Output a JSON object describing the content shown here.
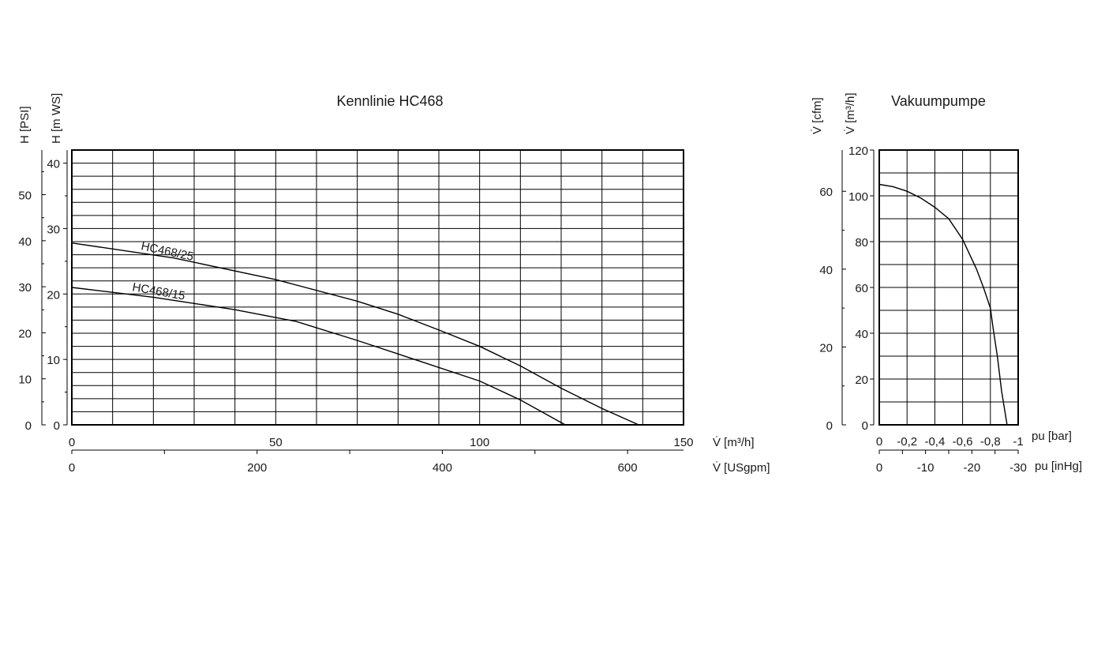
{
  "chart_data": [
    {
      "type": "line",
      "title": "Kennlinie HC468",
      "x_axes": [
        {
          "label": "V̇ [m³/h]",
          "range": [
            0,
            150
          ],
          "ticks": [
            0,
            50,
            100,
            150
          ]
        },
        {
          "label": "V̇ [USgpm]",
          "range": [
            0,
            660.4
          ],
          "ticks": [
            0,
            200,
            400,
            600
          ]
        }
      ],
      "y_axes": [
        {
          "label": "H [m WS]",
          "range": [
            0,
            42
          ],
          "ticks": [
            0,
            10,
            20,
            30,
            40
          ]
        },
        {
          "label": "H [PSI]",
          "range": [
            0,
            59.7
          ],
          "ticks": [
            0,
            10,
            20,
            30,
            40,
            50
          ]
        }
      ],
      "grid": true,
      "series": [
        {
          "name": "HC468/25",
          "x": [
            0,
            25,
            50,
            70,
            80,
            90,
            100,
            110,
            120,
            130,
            139
          ],
          "y": [
            27.8,
            25.5,
            22.2,
            18.9,
            16.9,
            14.5,
            12.0,
            9.0,
            5.6,
            2.5,
            0
          ]
        },
        {
          "name": "HC468/15",
          "x": [
            0,
            20,
            40,
            55,
            70,
            85,
            100,
            110,
            121
          ],
          "y": [
            21.0,
            19.5,
            17.6,
            15.8,
            12.9,
            9.8,
            6.7,
            3.8,
            0
          ]
        }
      ]
    },
    {
      "type": "line",
      "title": "Vakuumpumpe",
      "x_axes": [
        {
          "label": "pu [bar]",
          "range": [
            0,
            -1
          ],
          "ticks": [
            "0",
            "-0,2",
            "-0,4",
            "-0,6",
            "-0,8",
            "-1"
          ]
        },
        {
          "label": "pu [inHg]",
          "range": [
            0,
            -30
          ],
          "ticks": [
            0,
            -10,
            -20,
            -30
          ]
        }
      ],
      "y_axes": [
        {
          "label": "V̇ [m³/h]",
          "range": [
            0,
            120
          ],
          "ticks": [
            0,
            20,
            40,
            60,
            80,
            100,
            120
          ]
        },
        {
          "label": "V̇ [cfm]",
          "range": [
            0,
            70.6
          ],
          "ticks": [
            0,
            20,
            40,
            60
          ]
        }
      ],
      "grid": true,
      "series": [
        {
          "x": [
            0,
            -0.1,
            -0.2,
            -0.3,
            -0.4,
            -0.5,
            -0.6,
            -0.7,
            -0.75,
            -0.8,
            -0.82,
            -0.85,
            -0.88,
            -0.92
          ],
          "y": [
            105,
            104,
            102,
            99,
            95,
            90,
            81,
            68,
            60,
            51,
            42,
            30,
            15,
            0
          ]
        }
      ]
    }
  ]
}
